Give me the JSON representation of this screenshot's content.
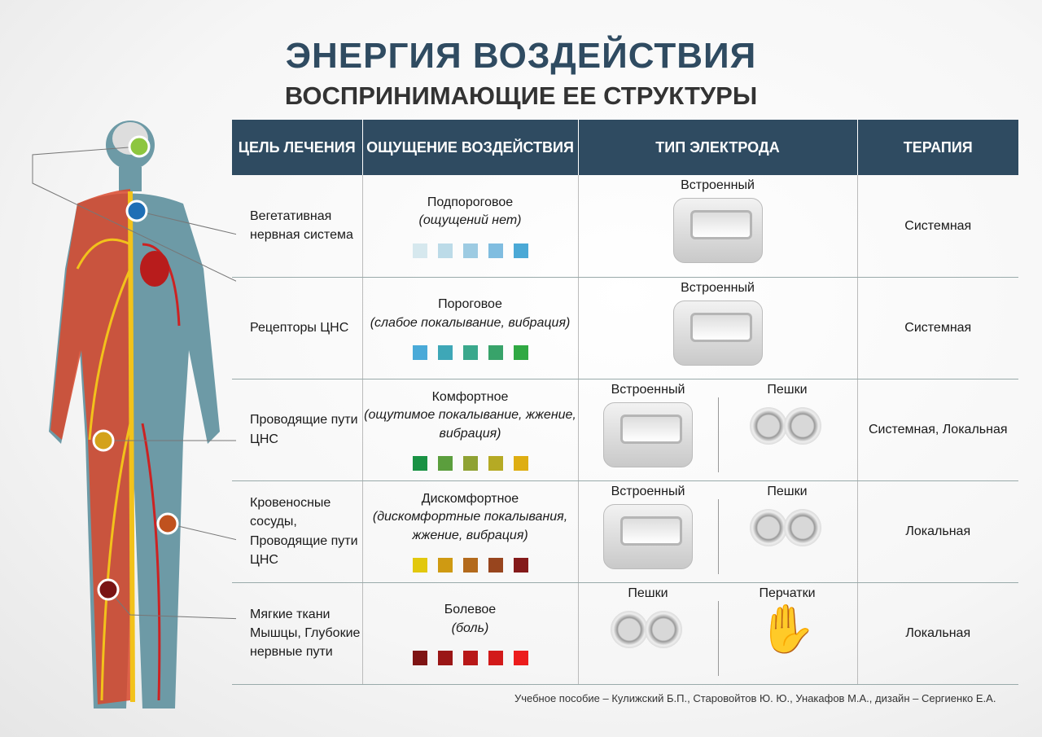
{
  "title": "ЭНЕРГИЯ ВОЗДЕЙСТВИЯ",
  "subtitle": "ВОСПРИНИМАЮЩИЕ ЕЕ СТРУКТУРЫ",
  "columns": [
    "ЦЕЛЬ ЛЕЧЕНИЯ",
    "ОЩУЩЕНИЕ ВОЗДЕЙСТВИЯ",
    "ТИП ЭЛЕКТРОДА",
    "ТЕРАПИЯ"
  ],
  "rows": [
    {
      "target": "Вегетативная нервная система",
      "sensation": "Подпороговое",
      "detail": "(ощущений нет)",
      "colors": [
        "#d6e8ee",
        "#bcdbe8",
        "#9dcbe2",
        "#80bde0",
        "#4ba9d6"
      ],
      "electrodes": [
        {
          "label": "Встроенный",
          "icon": "builtin-electrode"
        }
      ],
      "therapy": "Системная"
    },
    {
      "target": "Рецепторы ЦНС",
      "sensation": "Пороговое",
      "detail": "(слабое покалывание, вибрация)",
      "colors": [
        "#4aaad8",
        "#3ea7b7",
        "#3aa88c",
        "#38a36a",
        "#30a943"
      ],
      "electrodes": [
        {
          "label": "Встроенный",
          "icon": "builtin-electrode"
        }
      ],
      "therapy": "Системная"
    },
    {
      "target": "Проводящие пути ЦНС",
      "sensation": "Комфортное",
      "detail": "(ощутимое покалывание, жжение, вибрация)",
      "colors": [
        "#199244",
        "#5b9e3d",
        "#8fa233",
        "#b5aa24",
        "#deae12"
      ],
      "electrodes": [
        {
          "label": "Встроенный",
          "icon": "builtin-electrode"
        },
        {
          "label": "Пешки",
          "icon": "pawn-electrode"
        }
      ],
      "therapy": "Системная, Локальная"
    },
    {
      "target": "Кровеносные сосуды, Проводящие пути ЦНС",
      "sensation": "Дискомфортное",
      "detail": "(дискомфортные покалывания, жжение, вибрация)",
      "colors": [
        "#e2c80e",
        "#cf9a12",
        "#b36a1c",
        "#98451e",
        "#841a1a"
      ],
      "electrodes": [
        {
          "label": "Встроенный",
          "icon": "builtin-electrode"
        },
        {
          "label": "Пешки",
          "icon": "pawn-electrode"
        }
      ],
      "therapy": "Локальная"
    },
    {
      "target": "Мягкие ткани Мышцы, Глубокие нервные пути",
      "sensation": "Болевое",
      "detail": "(боль)",
      "colors": [
        "#7e1414",
        "#9a1616",
        "#b81818",
        "#d21a1a",
        "#ec1c1c"
      ],
      "electrodes": [
        {
          "label": "Пешки",
          "icon": "pawn-electrode"
        },
        {
          "label": "Перчатки",
          "icon": "glove-electrode"
        }
      ],
      "therapy": "Локальная"
    }
  ],
  "markers": [
    "#8dc63f",
    "#1f6fb5",
    "#d4a21a",
    "#c0521f",
    "#7a1414"
  ],
  "footer": "Учебное пособие –  Кулижский Б.П., Старовойтов Ю. Ю., Унакафов М.А., дизайн – Сергиенко Е.А."
}
